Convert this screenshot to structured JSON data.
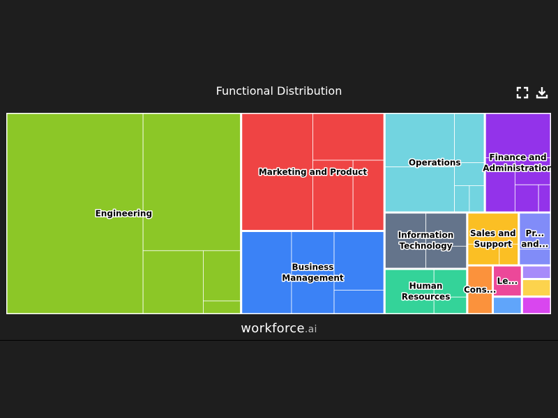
{
  "header": {
    "title": "Functional Distribution",
    "fullscreen_icon": "fullscreen-icon",
    "download_icon": "download-icon"
  },
  "footer": {
    "brand_name": "workforce",
    "brand_tld": ".ai"
  },
  "chart_data": {
    "type": "treemap",
    "title": "Functional Distribution",
    "categories": [
      {
        "name": "Engineering",
        "label_lines": [
          "Engineering"
        ],
        "value": 41.6,
        "color": "#8cc727",
        "children": [
          58.3,
          28.6,
          8.1,
          4.0,
          1.0
        ]
      },
      {
        "name": "Marketing and Product",
        "label_lines": [
          "Marketing and Product"
        ],
        "value": 14.9,
        "color": "#ef4444",
        "children": [
          50.0,
          20.0,
          17.0,
          13.0
        ]
      },
      {
        "name": "Business Management",
        "label_lines": [
          "Business",
          "Management"
        ],
        "value": 10.5,
        "color": "#3b82f6",
        "children": [
          35.0,
          30.0,
          25.0,
          10.0
        ]
      },
      {
        "name": "Operations",
        "label_lines": [
          "Operations"
        ],
        "value": 8.8,
        "color": "#72d4e0",
        "children": [
          38.0,
          32.0,
          15.0,
          7.0,
          4.0,
          4.0
        ]
      },
      {
        "name": "Finance and Administration",
        "label_lines": [
          "Finance and",
          "Administration"
        ],
        "value": 5.8,
        "color": "#9333ea",
        "children": [
          45.0,
          25.0,
          15.0,
          10.0,
          5.0
        ]
      },
      {
        "name": "Information Technology",
        "label_lines": [
          "Information",
          "Technology"
        ],
        "value": 4.1,
        "color": "#64748b",
        "children": [
          50.0,
          30.0,
          20.0
        ]
      },
      {
        "name": "Human Resources",
        "label_lines": [
          "Human",
          "Resources"
        ],
        "value": 3.3,
        "color": "#34d399",
        "children": [
          60.0,
          25.0,
          15.0
        ]
      },
      {
        "name": "Sales and Support",
        "label_lines": [
          "Sales and",
          "Support"
        ],
        "value": 2.4,
        "color": "#fbbf24",
        "children": [
          60.0,
          25.0,
          15.0
        ]
      },
      {
        "name": "Pr... and...",
        "label_lines": [
          "Pr...",
          "and..."
        ],
        "value": 1.5,
        "color": "#818cf8",
        "children": [
          70.0,
          30.0
        ]
      },
      {
        "name": "Cons...",
        "label_lines": [
          "Cons..."
        ],
        "value": 1.1,
        "color": "#fb923c",
        "children": [
          100
        ]
      },
      {
        "name": "Le...",
        "label_lines": [
          "Le..."
        ],
        "value": 0.8,
        "color": "#ec4899",
        "children": [
          100
        ]
      },
      {
        "name": "",
        "label_lines": [],
        "value": 0.45,
        "color": "#60a5fa",
        "children": [
          100
        ]
      },
      {
        "name": "",
        "label_lines": [],
        "value": 0.35,
        "color": "#a78bfa",
        "children": [
          100
        ]
      },
      {
        "name": "",
        "label_lines": [],
        "value": 0.45,
        "color": "#fcd34d",
        "children": [
          100
        ]
      },
      {
        "name": "",
        "label_lines": [],
        "value": 0.45,
        "color": "#d946ef",
        "children": [
          100
        ]
      }
    ]
  }
}
